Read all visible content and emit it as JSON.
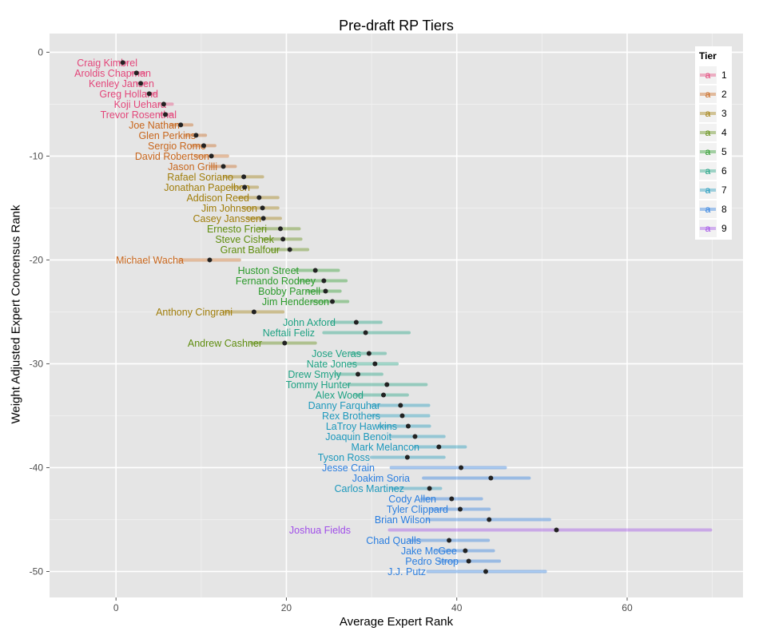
{
  "chart_data": {
    "type": "scatter",
    "title": "Pre-draft RP Tiers",
    "xlabel": "Average Expert Rank",
    "ylabel": "Weight Adjusted Expert Concensus Rank",
    "xlim": [
      -7.8,
      73.6
    ],
    "ylim": [
      -52.5,
      1.8
    ],
    "x_ticks": [
      "0",
      "20",
      "40",
      "60"
    ],
    "y_ticks": [
      "0",
      "-10",
      "-20",
      "-30",
      "-40",
      "-50"
    ],
    "grid": true,
    "legend": {
      "title": "Tier",
      "placement": "right-inside-top",
      "entries": [
        "1",
        "2",
        "3",
        "4",
        "5",
        "6",
        "7",
        "8",
        "9"
      ],
      "key_glyph": "a"
    },
    "tier_colors": {
      "1": "#E3467A",
      "2": "#C8661C",
      "3": "#A07D0A",
      "4": "#5F8D0E",
      "5": "#2A9A2A",
      "6": "#1EA283",
      "7": "#1C98BC",
      "8": "#2A7EE0",
      "9": "#A04EE8"
    },
    "columns": [
      "name",
      "tier",
      "avg_rank",
      "min_rank",
      "max_rank",
      "consensus_rank"
    ],
    "points": [
      [
        "Craig Kimbrel",
        1,
        0.8,
        0.5,
        1.3,
        -1
      ],
      [
        "Aroldis Chapman",
        1,
        2.4,
        1.9,
        3.3,
        -2
      ],
      [
        "Kenley Jansen",
        1,
        2.9,
        2.5,
        3.5,
        -3
      ],
      [
        "Greg Holland",
        1,
        3.9,
        3.6,
        4.7,
        -4
      ],
      [
        "Koji Uehara",
        1,
        5.6,
        5.1,
        6.6,
        -5
      ],
      [
        "Trevor Rosenthal",
        1,
        5.8,
        5.2,
        6.6,
        -6
      ],
      [
        "Joe Nathan",
        2,
        7.6,
        6.4,
        8.9,
        -7
      ],
      [
        "Glen Perkins",
        2,
        9.4,
        8.2,
        10.5,
        -8
      ],
      [
        "Sergio Romo",
        2,
        10.3,
        8.9,
        11.6,
        -9
      ],
      [
        "David Robertson",
        2,
        11.2,
        9.4,
        13.1,
        -10
      ],
      [
        "Jason Grilli",
        2,
        12.6,
        11.2,
        14.0,
        -11
      ],
      [
        "Rafael Soriano",
        3,
        15.0,
        12.7,
        17.2,
        -12
      ],
      [
        "Jonathan Papelbon",
        3,
        15.1,
        13.6,
        16.6,
        -13
      ],
      [
        "Addison Reed",
        3,
        16.8,
        14.5,
        19.0,
        -14
      ],
      [
        "Jim Johnson",
        3,
        17.2,
        15.0,
        19.0,
        -15
      ],
      [
        "Casey Janssen",
        3,
        17.3,
        15.5,
        19.3,
        -16
      ],
      [
        "Ernesto Frieri",
        4,
        19.3,
        16.9,
        21.5,
        -17
      ],
      [
        "Steve Cishek",
        4,
        19.6,
        17.3,
        21.7,
        -18
      ],
      [
        "Grant Balfour",
        4,
        20.4,
        18.3,
        22.5,
        -19
      ],
      [
        "Michael Wacha",
        2,
        11.0,
        7.5,
        14.5,
        -20
      ],
      [
        "Huston Street",
        5,
        23.4,
        21.1,
        26.1,
        -21
      ],
      [
        "Fernando Rodney",
        5,
        24.4,
        21.6,
        27.0,
        -22
      ],
      [
        "Bobby Parnell",
        5,
        24.6,
        22.5,
        26.3,
        -23
      ],
      [
        "Jim Henderson",
        5,
        25.4,
        23.0,
        27.2,
        -24
      ],
      [
        "Anthony Cingrani",
        3,
        16.2,
        12.7,
        19.6,
        -25
      ],
      [
        "John Axford",
        6,
        28.2,
        25.3,
        31.1,
        -26
      ],
      [
        "Neftali Feliz",
        6,
        29.3,
        24.4,
        34.4,
        -27
      ],
      [
        "Andrew Cashner",
        4,
        19.8,
        15.9,
        23.4,
        -28
      ],
      [
        "Jose Veras",
        6,
        29.7,
        27.6,
        31.6,
        -29
      ],
      [
        "Nate Jones",
        6,
        30.4,
        27.6,
        33.0,
        -30
      ],
      [
        "Drew Smyly",
        6,
        28.4,
        25.8,
        31.2,
        -31
      ],
      [
        "Tommy Hunter",
        6,
        31.8,
        27.2,
        36.4,
        -32
      ],
      [
        "Alex Wood",
        6,
        31.4,
        28.1,
        34.2,
        -33
      ],
      [
        "Danny Farquhar",
        7,
        33.4,
        30.0,
        36.7,
        -34
      ],
      [
        "Rex Brothers",
        7,
        33.6,
        30.0,
        36.7,
        -35
      ],
      [
        "LaTroy Hawkins",
        7,
        34.3,
        30.9,
        36.8,
        -36
      ],
      [
        "Joaquin Benoit",
        7,
        35.1,
        32.3,
        38.5,
        -37
      ],
      [
        "Mark Melancon",
        7,
        37.9,
        35.1,
        41.0,
        -38
      ],
      [
        "Tyson Ross",
        7,
        34.2,
        30.0,
        38.5,
        -39
      ],
      [
        "Jesse Crain",
        8,
        40.5,
        32.3,
        45.7,
        -40
      ],
      [
        "Joakim Soria",
        8,
        44.0,
        36.1,
        48.5,
        -41
      ],
      [
        "Carlos Martinez",
        7,
        36.8,
        32.3,
        38.1,
        -42
      ],
      [
        "Cody Allen",
        8,
        39.4,
        35.9,
        42.9,
        -43
      ],
      [
        "Tyler Clippard",
        8,
        40.4,
        37.0,
        43.8,
        -44
      ],
      [
        "Brian Wilson",
        8,
        43.8,
        36.6,
        50.9,
        -45
      ],
      [
        "Joshua Fields",
        9,
        51.7,
        32.1,
        69.8,
        -46
      ],
      [
        "Chad Qualls",
        8,
        39.1,
        34.5,
        43.7,
        -47
      ],
      [
        "Jake McGee",
        8,
        41.0,
        37.6,
        44.3,
        -48
      ],
      [
        "Pedro Strop",
        8,
        41.4,
        38.0,
        45.0,
        -49
      ],
      [
        "J.J. Putz",
        8,
        43.4,
        36.6,
        50.4,
        -50
      ]
    ]
  }
}
